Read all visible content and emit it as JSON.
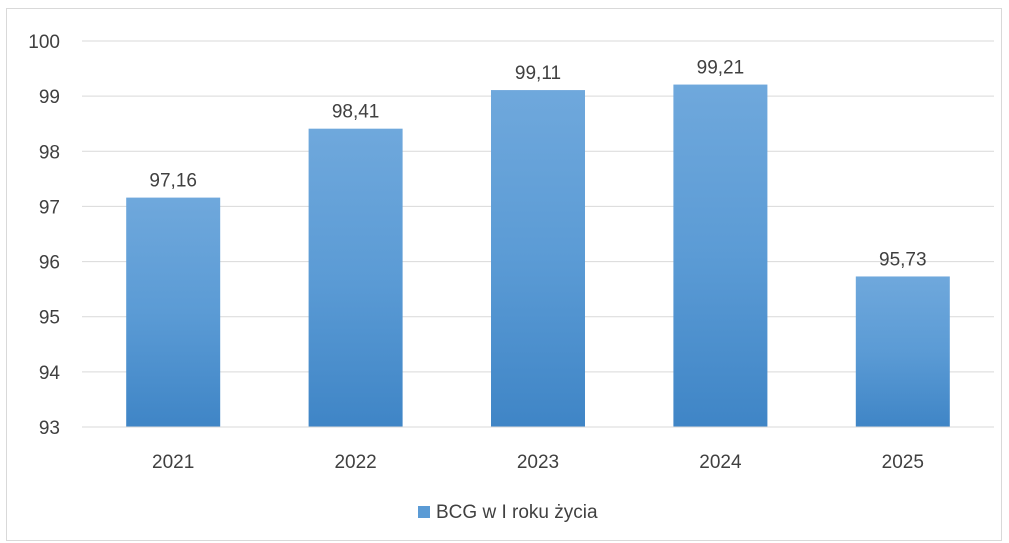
{
  "chart_data": {
    "type": "bar",
    "categories": [
      "2021",
      "2022",
      "2023",
      "2024",
      "2025"
    ],
    "series": [
      {
        "name": "BCG w I roku  życia",
        "values": [
          97.16,
          98.41,
          99.11,
          99.21,
          95.73
        ]
      }
    ],
    "data_labels": [
      "97,16",
      "98,41",
      "99,11",
      "99,21",
      "95,73"
    ],
    "y_ticks": [
      "93",
      "94",
      "95",
      "96",
      "97",
      "98",
      "99",
      "100"
    ],
    "ylim": [
      93,
      100
    ],
    "grid": true,
    "legend_position": "bottom",
    "colors": {
      "bar_top": "#6fa8dc",
      "bar_mid": "#5b9bd5",
      "bar_bottom": "#3f85c6",
      "grid": "#d9d9d9",
      "text": "#404040"
    }
  }
}
